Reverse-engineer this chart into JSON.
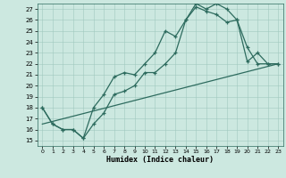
{
  "xlabel": "Humidex (Indice chaleur)",
  "bg_color": "#cce8e0",
  "line_color": "#2d6b5e",
  "xlim": [
    -0.5,
    23.5
  ],
  "ylim": [
    14.5,
    27.5
  ],
  "xticks": [
    0,
    1,
    2,
    3,
    4,
    5,
    6,
    7,
    8,
    9,
    10,
    11,
    12,
    13,
    14,
    15,
    16,
    17,
    18,
    19,
    20,
    21,
    22,
    23
  ],
  "yticks": [
    15,
    16,
    17,
    18,
    19,
    20,
    21,
    22,
    23,
    24,
    25,
    26,
    27
  ],
  "curve1_x": [
    0,
    1,
    2,
    3,
    4,
    5,
    6,
    7,
    8,
    9,
    10,
    11,
    12,
    13,
    14,
    15,
    16,
    17,
    18,
    19,
    20,
    21,
    22,
    23
  ],
  "curve1_y": [
    18,
    16.5,
    16,
    16,
    15.2,
    18,
    19.2,
    20.8,
    21.2,
    21,
    22,
    23,
    25,
    24.5,
    26,
    27.5,
    27,
    27.5,
    27,
    26,
    22.2,
    23,
    22,
    22
  ],
  "curve2_x": [
    0,
    1,
    2,
    3,
    4,
    5,
    6,
    7,
    8,
    9,
    10,
    11,
    12,
    13,
    14,
    15,
    16,
    17,
    18,
    19,
    20,
    21,
    22,
    23
  ],
  "curve2_y": [
    18,
    16.5,
    16,
    16,
    15.2,
    16.5,
    17.5,
    19.2,
    19.5,
    20,
    21.2,
    21.2,
    22,
    23,
    26,
    27.2,
    26.8,
    26.5,
    25.8,
    26,
    23.5,
    22,
    22,
    22
  ],
  "curve3_x": [
    0,
    23
  ],
  "curve3_y": [
    16.5,
    22
  ]
}
